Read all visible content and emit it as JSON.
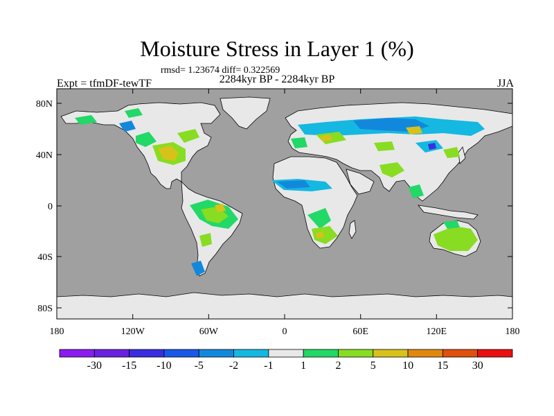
{
  "title": "Moisture Stress in Layer 1 (%)",
  "stats": "rmsd= 1.23674 diff= 0.322569",
  "period": "2284kyr BP - 2284kyr BP",
  "experiment": "Expt = tfmDF-tewTF",
  "season": "JJA",
  "map": {
    "lon_ticks": [
      "180",
      "120W",
      "60W",
      "0",
      "60E",
      "120E",
      "180"
    ],
    "lat_ticks": [
      "80N",
      "40N",
      "0",
      "40S",
      "80S"
    ],
    "ocean_color": "#a0a0a0",
    "land_color": "#e8e8e8"
  },
  "colorbar": {
    "labels": [
      "-30",
      "-15",
      "-10",
      "-5",
      "-2",
      "-1",
      "1",
      "2",
      "5",
      "10",
      "15",
      "30"
    ],
    "colors": [
      "#8a1cf0",
      "#6a20e0",
      "#3a2ee0",
      "#1a58e8",
      "#1288dc",
      "#14b8e0",
      "#e8e8e8",
      "#22d866",
      "#88dc22",
      "#d6c21a",
      "#e0880e",
      "#e0500e",
      "#e81010"
    ]
  }
}
